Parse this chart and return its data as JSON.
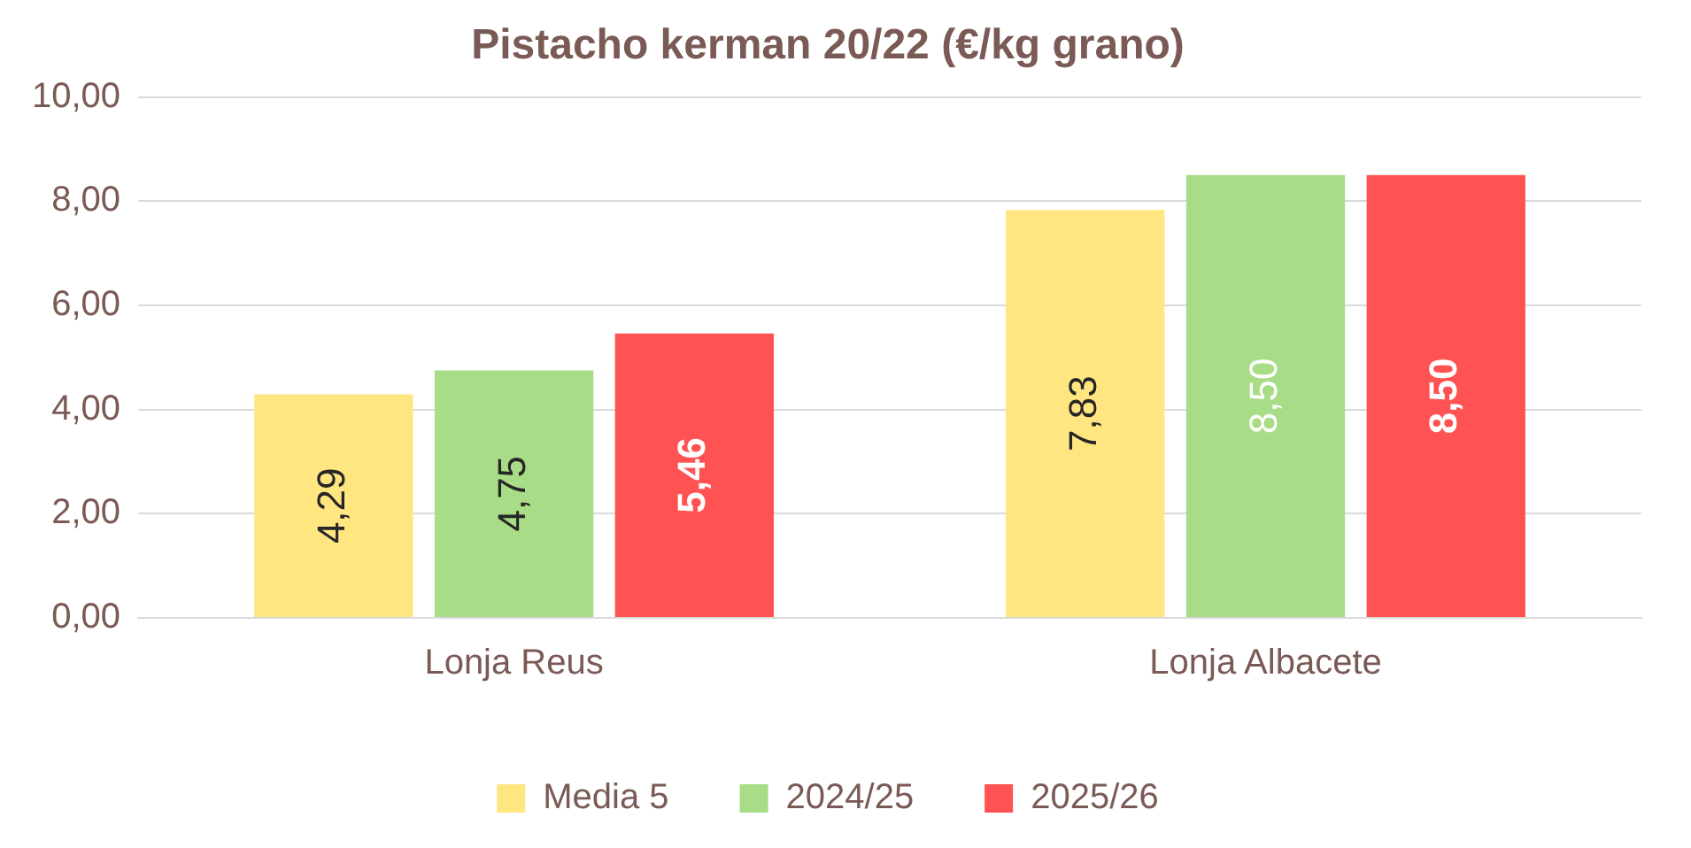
{
  "chart_data": {
    "type": "bar",
    "title": "Pistacho kerman 20/22 (€/kg grano)",
    "categories": [
      "Lonja Reus",
      "Lonja Albacete"
    ],
    "series": [
      {
        "name": "Media 5",
        "color": "#ffe680",
        "values": [
          4.29,
          7.83
        ],
        "value_labels": [
          "4,29",
          "7,83"
        ]
      },
      {
        "name": "2024/25",
        "color": "#a9dc87",
        "values": [
          4.75,
          8.5
        ],
        "value_labels": [
          "4,75",
          "8,50"
        ]
      },
      {
        "name": "2025/26",
        "color": "#ff5252",
        "values": [
          5.46,
          8.5
        ],
        "value_labels": [
          "5,46",
          "8,50"
        ]
      }
    ],
    "ylim": [
      0,
      10
    ],
    "yticks": [
      {
        "value": 0,
        "label": "0,00"
      },
      {
        "value": 2,
        "label": "2,00"
      },
      {
        "value": 4,
        "label": "4,00"
      },
      {
        "value": 6,
        "label": "6,00"
      },
      {
        "value": 8,
        "label": "8,00"
      },
      {
        "value": 10,
        "label": "10,00"
      }
    ],
    "grid": "y",
    "legend": "bottom"
  }
}
